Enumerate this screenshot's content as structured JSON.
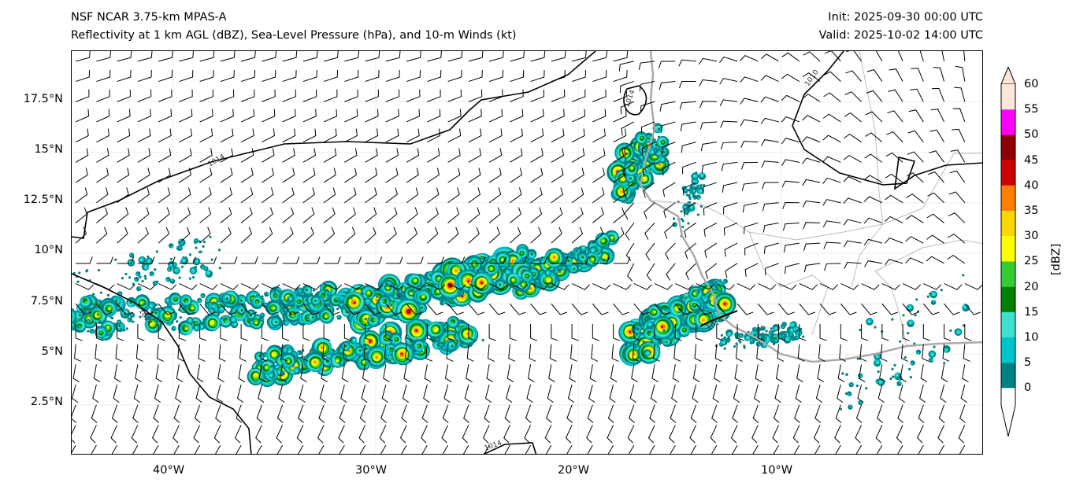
{
  "title": {
    "left_line1": "NSF NCAR 3.75-km MPAS-A",
    "left_line2": "Reflectivity at 1 km AGL (dBZ), Sea-Level Pressure (hPa), and 10-m Winds (kt)",
    "init": "Init: 2025-09-30 00:00 UTC",
    "valid": "Valid: 2025-10-02 14:00 UTC"
  },
  "axes": {
    "lon_ticks": [
      "40°W",
      "30°W",
      "20°W",
      "10°W"
    ],
    "lat_ticks": [
      "17.5°N",
      "15°N",
      "12.5°N",
      "10°N",
      "7.5°N",
      "5°N",
      "2.5°N"
    ],
    "lon_range": [
      -45,
      0
    ],
    "lat_range": [
      0,
      20
    ]
  },
  "isobar_labels": [
    "1014",
    "1014",
    "1014",
    "1014",
    "1010",
    "1014"
  ],
  "colorbar": {
    "label": "[dBZ]",
    "ticks": [
      "0",
      "5",
      "10",
      "15",
      "20",
      "25",
      "30",
      "35",
      "40",
      "45",
      "50",
      "55",
      "60"
    ],
    "colors": [
      "#008080",
      "#00c4cc",
      "#40e0d0",
      "#008000",
      "#32cd32",
      "#ffff00",
      "#ffd700",
      "#ff8000",
      "#cc0000",
      "#8b0000",
      "#ff00ff",
      "#ffe4d8"
    ]
  }
}
